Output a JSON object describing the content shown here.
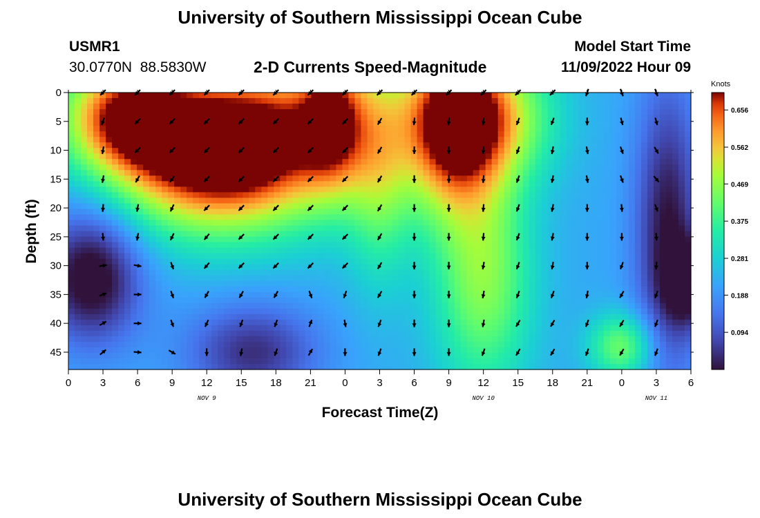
{
  "header": {
    "title": "University of Southern Mississippi Ocean Cube",
    "station": "USMR1",
    "coords": "30.0770N  88.5830W",
    "plot_title": "2-D Currents Speed-Magnitude",
    "start_label": "Model Start Time",
    "start_value": "11/09/2022 Hour 09"
  },
  "footer": {
    "title": "University of Southern Mississippi Ocean Cube"
  },
  "chart_data": {
    "type": "heatmap",
    "title": "2-D Currents Speed-Magnitude",
    "xlabel": "Forecast Time(Z)",
    "ylabel": "Depth (ft)",
    "colorbar_label": "Knots",
    "colorbar_ticks": [
      "0.656",
      "0.562",
      "0.469",
      "0.375",
      "0.281",
      "0.188",
      "0.094"
    ],
    "colorbar_values": [
      0.656,
      0.562,
      0.469,
      0.375,
      0.281,
      0.188,
      0.094
    ],
    "vmin": 0.0,
    "vmax": 0.7,
    "xlim": [
      0,
      54
    ],
    "ylim": [
      0,
      48
    ],
    "x_ticks": [
      0,
      3,
      6,
      9,
      12,
      15,
      18,
      21,
      24,
      27,
      30,
      33,
      36,
      39,
      42,
      45,
      48,
      51,
      54
    ],
    "x_tick_labels": [
      "0",
      "3",
      "6",
      "9",
      "12",
      "15",
      "18",
      "21",
      "0",
      "3",
      "6",
      "9",
      "12",
      "15",
      "18",
      "21",
      "0",
      "3",
      "6"
    ],
    "y_ticks": [
      0,
      5,
      10,
      15,
      20,
      25,
      30,
      35,
      40,
      45
    ],
    "y_tick_labels": [
      "0",
      "5",
      "10",
      "15",
      "20",
      "25",
      "30",
      "35",
      "40",
      "45"
    ],
    "day_labels": [
      {
        "x": 12,
        "label": "NOV 9"
      },
      {
        "x": 36,
        "label": "NOV 10"
      },
      {
        "x": 51,
        "label": "NOV 11"
      }
    ],
    "speed_centers": [
      {
        "x": 5,
        "y": 4,
        "amp": 0.72,
        "sx": 4,
        "sy": 7
      },
      {
        "x": 11,
        "y": 11,
        "amp": 0.72,
        "sx": 5,
        "sy": 9
      },
      {
        "x": 18,
        "y": 8,
        "amp": 0.68,
        "sx": 5,
        "sy": 10
      },
      {
        "x": 23,
        "y": 4,
        "amp": 0.52,
        "sx": 2,
        "sy": 9
      },
      {
        "x": 33,
        "y": 6,
        "amp": 0.62,
        "sx": 3,
        "sy": 11
      },
      {
        "x": 36,
        "y": 4,
        "amp": 0.55,
        "sx": 4,
        "sy": 8
      },
      {
        "x": 36,
        "y": 32,
        "amp": 0.4,
        "sx": 3,
        "sy": 14
      },
      {
        "x": 48,
        "y": 44,
        "amp": 0.36,
        "sx": 2,
        "sy": 4
      },
      {
        "x": 27,
        "y": 12,
        "amp": 0.33,
        "sx": 2,
        "sy": 14
      }
    ],
    "speed_lows": [
      {
        "x": 2,
        "y": 32,
        "amp": 0.26,
        "sx": 3,
        "sy": 8
      },
      {
        "x": 16,
        "y": 45,
        "amp": 0.18,
        "sx": 4,
        "sy": 6
      },
      {
        "x": 52,
        "y": 24,
        "amp": 0.22,
        "sx": 2,
        "sy": 18
      },
      {
        "x": 54,
        "y": 33,
        "amp": 0.2,
        "sx": 1.5,
        "sy": 5
      }
    ],
    "vector_times": [
      3,
      6,
      9,
      12,
      15,
      18,
      21,
      24,
      27,
      30,
      33,
      36,
      39,
      42,
      45,
      48,
      51
    ],
    "vector_depths": [
      0,
      5,
      10,
      15,
      20,
      25,
      30,
      35,
      40,
      45
    ],
    "vector_directions_deg": [
      [
        225,
        225,
        225,
        225,
        225,
        225,
        225,
        225,
        225,
        225,
        225,
        225,
        225,
        225,
        200,
        160,
        160
      ],
      [
        200,
        225,
        225,
        225,
        225,
        225,
        225,
        225,
        210,
        185,
        185,
        185,
        200,
        200,
        180,
        165,
        165
      ],
      [
        190,
        225,
        225,
        225,
        225,
        225,
        225,
        225,
        210,
        180,
        180,
        185,
        200,
        190,
        170,
        160,
        150
      ],
      [
        190,
        210,
        215,
        225,
        225,
        225,
        225,
        225,
        210,
        180,
        180,
        185,
        200,
        190,
        170,
        160,
        140
      ],
      [
        185,
        190,
        205,
        225,
        225,
        225,
        225,
        225,
        210,
        180,
        180,
        185,
        200,
        190,
        180,
        175,
        160
      ],
      [
        175,
        190,
        205,
        220,
        225,
        225,
        225,
        225,
        210,
        180,
        180,
        185,
        200,
        190,
        180,
        180,
        175
      ],
      [
        80,
        100,
        160,
        220,
        225,
        225,
        225,
        225,
        210,
        180,
        180,
        190,
        200,
        190,
        180,
        200,
        185
      ],
      [
        70,
        90,
        160,
        210,
        210,
        210,
        160,
        200,
        210,
        180,
        180,
        190,
        200,
        200,
        190,
        210,
        200
      ],
      [
        60,
        90,
        160,
        205,
        200,
        200,
        20,
        170,
        200,
        180,
        180,
        190,
        210,
        210,
        200,
        210,
        200
      ],
      [
        50,
        95,
        120,
        180,
        190,
        200,
        30,
        180,
        200,
        180,
        180,
        200,
        210,
        210,
        200,
        210,
        200
      ]
    ]
  }
}
